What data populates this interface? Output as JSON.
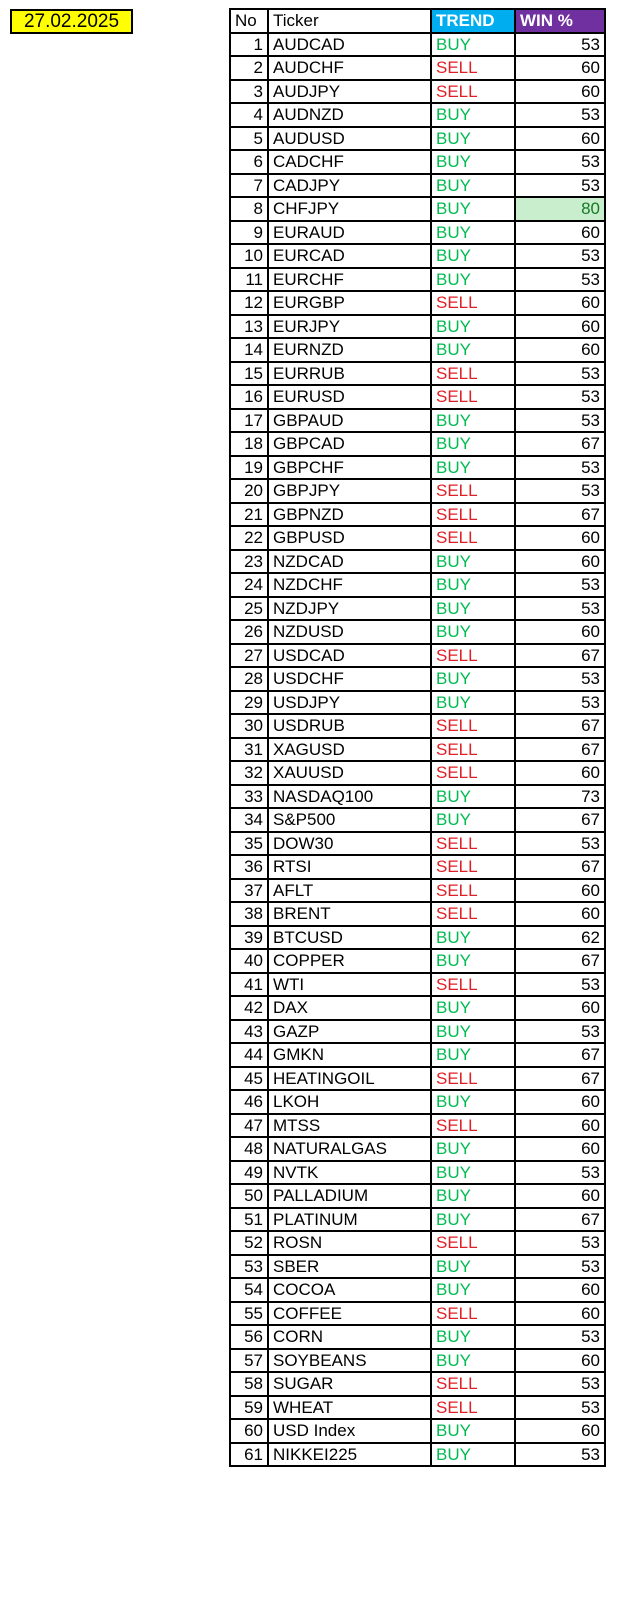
{
  "date_label": "27.02.2025",
  "colors": {
    "date_bg": "#FFFF00",
    "trend_header_bg": "#00AEEF",
    "win_header_bg": "#7030A0",
    "buy_text": "#00BB50",
    "sell_text": "#E01E25",
    "highlight_cell_bg": "#C9EECD",
    "highlight_cell_text": "#157A24",
    "border": "#000000"
  },
  "table": {
    "headers": {
      "no": "No",
      "ticker": "Ticker",
      "trend": "TREND",
      "win": "WIN %"
    },
    "rows": [
      {
        "no": 1,
        "ticker": "AUDCAD",
        "trend": "BUY",
        "win": 53
      },
      {
        "no": 2,
        "ticker": "AUDCHF",
        "trend": "SELL",
        "win": 60
      },
      {
        "no": 3,
        "ticker": "AUDJPY",
        "trend": "SELL",
        "win": 60
      },
      {
        "no": 4,
        "ticker": "AUDNZD",
        "trend": "BUY",
        "win": 53
      },
      {
        "no": 5,
        "ticker": "AUDUSD",
        "trend": "BUY",
        "win": 60
      },
      {
        "no": 6,
        "ticker": "CADCHF",
        "trend": "BUY",
        "win": 53
      },
      {
        "no": 7,
        "ticker": "CADJPY",
        "trend": "BUY",
        "win": 53
      },
      {
        "no": 8,
        "ticker": "CHFJPY",
        "trend": "BUY",
        "win": 80,
        "highlight": true
      },
      {
        "no": 9,
        "ticker": "EURAUD",
        "trend": "BUY",
        "win": 60
      },
      {
        "no": 10,
        "ticker": "EURCAD",
        "trend": "BUY",
        "win": 53
      },
      {
        "no": 11,
        "ticker": "EURCHF",
        "trend": "BUY",
        "win": 53
      },
      {
        "no": 12,
        "ticker": "EURGBP",
        "trend": "SELL",
        "win": 60
      },
      {
        "no": 13,
        "ticker": "EURJPY",
        "trend": "BUY",
        "win": 60
      },
      {
        "no": 14,
        "ticker": "EURNZD",
        "trend": "BUY",
        "win": 60
      },
      {
        "no": 15,
        "ticker": "EURRUB",
        "trend": "SELL",
        "win": 53
      },
      {
        "no": 16,
        "ticker": "EURUSD",
        "trend": "SELL",
        "win": 53
      },
      {
        "no": 17,
        "ticker": "GBPAUD",
        "trend": "BUY",
        "win": 53
      },
      {
        "no": 18,
        "ticker": "GBPCAD",
        "trend": "BUY",
        "win": 67
      },
      {
        "no": 19,
        "ticker": "GBPCHF",
        "trend": "BUY",
        "win": 53
      },
      {
        "no": 20,
        "ticker": "GBPJPY",
        "trend": "SELL",
        "win": 53
      },
      {
        "no": 21,
        "ticker": "GBPNZD",
        "trend": "SELL",
        "win": 67
      },
      {
        "no": 22,
        "ticker": "GBPUSD",
        "trend": "SELL",
        "win": 60
      },
      {
        "no": 23,
        "ticker": "NZDCAD",
        "trend": "BUY",
        "win": 60
      },
      {
        "no": 24,
        "ticker": "NZDCHF",
        "trend": "BUY",
        "win": 53
      },
      {
        "no": 25,
        "ticker": "NZDJPY",
        "trend": "BUY",
        "win": 53
      },
      {
        "no": 26,
        "ticker": "NZDUSD",
        "trend": "BUY",
        "win": 60
      },
      {
        "no": 27,
        "ticker": "USDCAD",
        "trend": "SELL",
        "win": 67
      },
      {
        "no": 28,
        "ticker": "USDCHF",
        "trend": "BUY",
        "win": 53
      },
      {
        "no": 29,
        "ticker": "USDJPY",
        "trend": "BUY",
        "win": 53
      },
      {
        "no": 30,
        "ticker": "USDRUB",
        "trend": "SELL",
        "win": 67
      },
      {
        "no": 31,
        "ticker": "XAGUSD",
        "trend": "SELL",
        "win": 67
      },
      {
        "no": 32,
        "ticker": "XAUUSD",
        "trend": "SELL",
        "win": 60
      },
      {
        "no": 33,
        "ticker": "NASDAQ100",
        "trend": "BUY",
        "win": 73
      },
      {
        "no": 34,
        "ticker": "S&P500",
        "trend": "BUY",
        "win": 67
      },
      {
        "no": 35,
        "ticker": "DOW30",
        "trend": "SELL",
        "win": 53
      },
      {
        "no": 36,
        "ticker": "RTSI",
        "trend": "SELL",
        "win": 67
      },
      {
        "no": 37,
        "ticker": "AFLT",
        "trend": "SELL",
        "win": 60
      },
      {
        "no": 38,
        "ticker": "BRENT",
        "trend": "SELL",
        "win": 60
      },
      {
        "no": 39,
        "ticker": "BTCUSD",
        "trend": "BUY",
        "win": 62
      },
      {
        "no": 40,
        "ticker": "COPPER",
        "trend": "BUY",
        "win": 67
      },
      {
        "no": 41,
        "ticker": "WTI",
        "trend": "SELL",
        "win": 53
      },
      {
        "no": 42,
        "ticker": "DAX",
        "trend": "BUY",
        "win": 60
      },
      {
        "no": 43,
        "ticker": "GAZP",
        "trend": "BUY",
        "win": 53
      },
      {
        "no": 44,
        "ticker": "GMKN",
        "trend": "BUY",
        "win": 67
      },
      {
        "no": 45,
        "ticker": "HEATINGOIL",
        "trend": "SELL",
        "win": 67
      },
      {
        "no": 46,
        "ticker": "LKOH",
        "trend": "BUY",
        "win": 60
      },
      {
        "no": 47,
        "ticker": "MTSS",
        "trend": "SELL",
        "win": 60
      },
      {
        "no": 48,
        "ticker": "NATURALGAS",
        "trend": "BUY",
        "win": 60
      },
      {
        "no": 49,
        "ticker": "NVTK",
        "trend": "BUY",
        "win": 53
      },
      {
        "no": 50,
        "ticker": "PALLADIUM",
        "trend": "BUY",
        "win": 60
      },
      {
        "no": 51,
        "ticker": "PLATINUM",
        "trend": "BUY",
        "win": 67
      },
      {
        "no": 52,
        "ticker": "ROSN",
        "trend": "SELL",
        "win": 53
      },
      {
        "no": 53,
        "ticker": "SBER",
        "trend": "BUY",
        "win": 53
      },
      {
        "no": 54,
        "ticker": "COCOA",
        "trend": "BUY",
        "win": 60
      },
      {
        "no": 55,
        "ticker": "COFFEE",
        "trend": "SELL",
        "win": 60
      },
      {
        "no": 56,
        "ticker": "CORN",
        "trend": "BUY",
        "win": 53
      },
      {
        "no": 57,
        "ticker": "SOYBEANS",
        "trend": "BUY",
        "win": 60
      },
      {
        "no": 58,
        "ticker": "SUGAR",
        "trend": "SELL",
        "win": 53
      },
      {
        "no": 59,
        "ticker": "WHEAT",
        "trend": "SELL",
        "win": 53
      },
      {
        "no": 60,
        "ticker": "USD Index",
        "trend": "BUY",
        "win": 60
      },
      {
        "no": 61,
        "ticker": "NIKKEI225",
        "trend": "BUY",
        "win": 53
      }
    ]
  }
}
